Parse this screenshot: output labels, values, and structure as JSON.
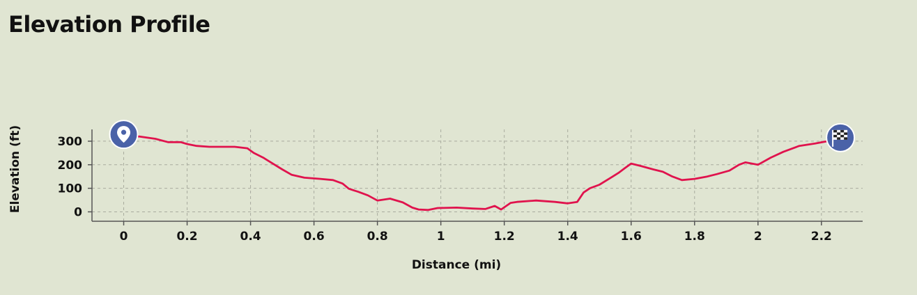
{
  "header": {
    "title": "Elevation Profile"
  },
  "markers": {
    "start_icon": "map-pin-icon",
    "finish_icon": "checkered-flag-icon",
    "color": "#4a62a8"
  },
  "chart_data": {
    "type": "line",
    "xlabel": "Distance (mi)",
    "ylabel": "Elevation (ft)",
    "xlim": [
      -0.1,
      2.33
    ],
    "ylim": [
      -40,
      350
    ],
    "xticks": [
      0,
      0.2,
      0.4,
      0.6,
      0.8,
      1,
      1.2,
      1.4,
      1.6,
      1.8,
      2,
      2.2
    ],
    "xtick_labels": [
      "0",
      "0.2",
      "0.4",
      "0.6",
      "0.8",
      "1",
      "1.2",
      "1.4",
      "1.6",
      "1.8",
      "2",
      "2.2"
    ],
    "yticks": [
      0,
      100,
      200,
      300
    ],
    "ytick_labels": [
      "0",
      "100",
      "200",
      "300"
    ],
    "grid": true,
    "line_color": "#e0134d",
    "series": [
      {
        "x": [
          0,
          0.05,
          0.1,
          0.14,
          0.18,
          0.2,
          0.23,
          0.27,
          0.35,
          0.39,
          0.41,
          0.44,
          0.47,
          0.5,
          0.53,
          0.57,
          0.62,
          0.66,
          0.69,
          0.71,
          0.74,
          0.77,
          0.8,
          0.84,
          0.88,
          0.91,
          0.93,
          0.96,
          0.99,
          1.05,
          1.1,
          1.14,
          1.17,
          1.19,
          1.22,
          1.24,
          1.3,
          1.36,
          1.4,
          1.43,
          1.45,
          1.47,
          1.5,
          1.53,
          1.56,
          1.58,
          1.6,
          1.63,
          1.67,
          1.7,
          1.73,
          1.76,
          1.8,
          1.84,
          1.87,
          1.91,
          1.94,
          1.96,
          2.0,
          2.04,
          2.08,
          2.13,
          2.18,
          2.22,
          2.26
        ],
        "y": [
          320,
          320,
          310,
          296,
          296,
          288,
          280,
          276,
          276,
          270,
          250,
          230,
          205,
          180,
          157,
          145,
          140,
          135,
          120,
          98,
          85,
          70,
          48,
          56,
          40,
          18,
          10,
          8,
          16,
          18,
          14,
          12,
          25,
          10,
          38,
          42,
          48,
          42,
          36,
          42,
          82,
          100,
          115,
          140,
          165,
          185,
          205,
          195,
          180,
          170,
          150,
          135,
          140,
          150,
          160,
          175,
          200,
          210,
          200,
          230,
          255,
          280,
          290,
          300,
          315
        ]
      }
    ]
  }
}
